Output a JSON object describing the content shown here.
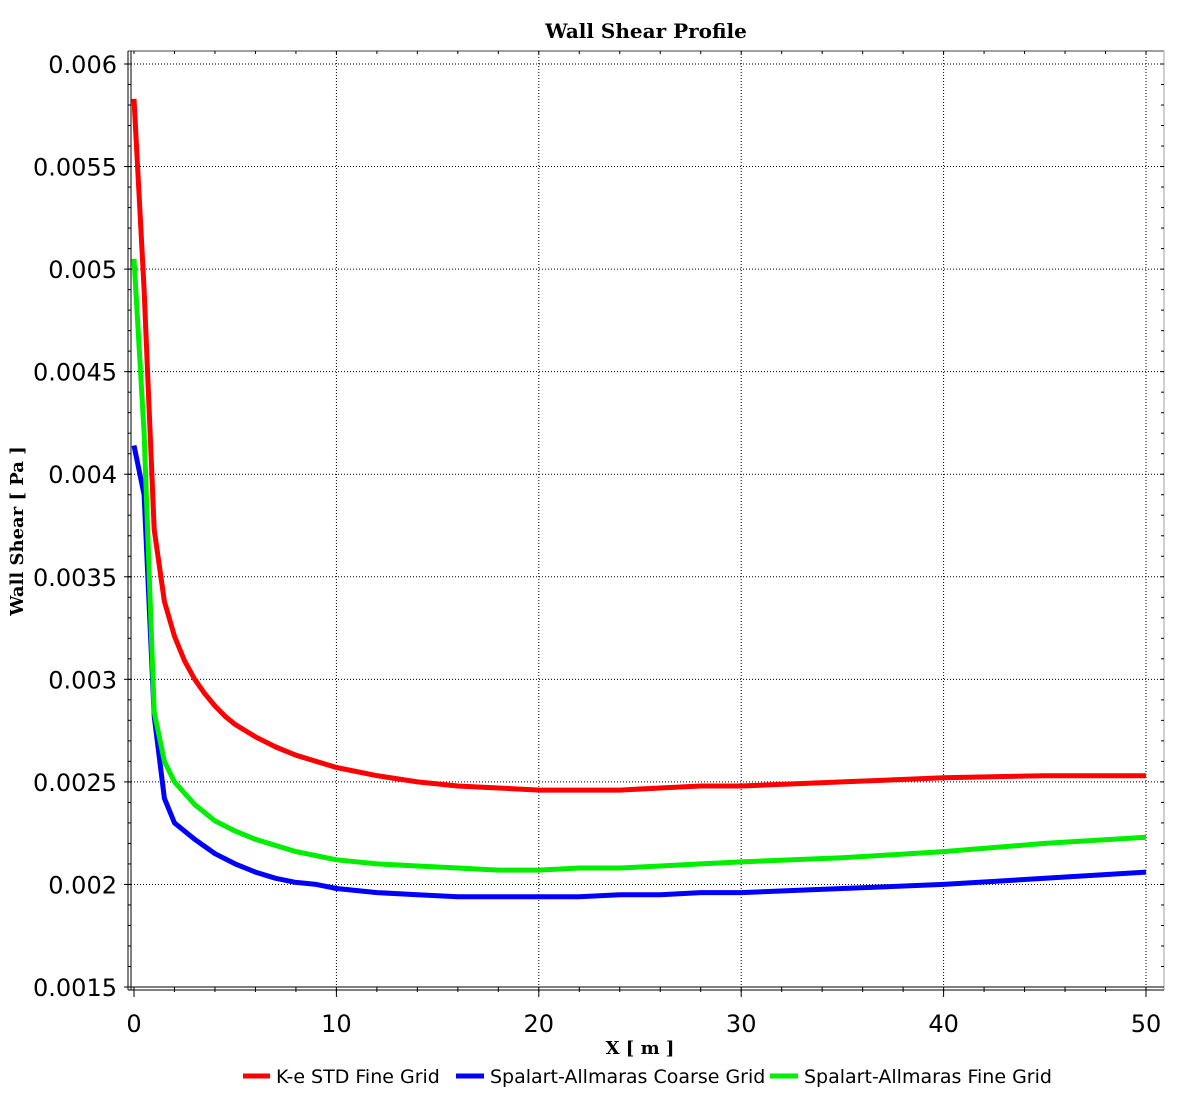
{
  "chart_data": {
    "type": "line",
    "title": "Wall Shear Profile",
    "xlabel": "X [ m ]",
    "ylabel": "Wall Shear [ Pa ]",
    "xlim": [
      0,
      50
    ],
    "ylim": [
      0.0015,
      0.006
    ],
    "xticks": [
      "0",
      "10",
      "20",
      "30",
      "40",
      "50"
    ],
    "yticks": [
      "0.006",
      "0.0055",
      "0.005",
      "0.0045",
      "0.004",
      "0.0035",
      "0.003",
      "0.0025",
      "0.002",
      "0.0015"
    ],
    "grid": true,
    "legend_position": "bottom",
    "series": [
      {
        "name": "K-e STD Fine Grid",
        "color": "#ff0000",
        "x": [
          0,
          0.5,
          1,
          1.5,
          2,
          2.5,
          3,
          3.5,
          4,
          4.5,
          5,
          6,
          7,
          8,
          9,
          10,
          12,
          14,
          16,
          18,
          20,
          22,
          24,
          26,
          28,
          30,
          35,
          40,
          45,
          50
        ],
        "y": [
          0.00583,
          0.0049,
          0.00373,
          0.00338,
          0.00321,
          0.00309,
          0.003,
          0.00293,
          0.00287,
          0.00282,
          0.00278,
          0.00272,
          0.00267,
          0.00263,
          0.0026,
          0.00257,
          0.00253,
          0.0025,
          0.00248,
          0.00247,
          0.00246,
          0.00246,
          0.00246,
          0.00247,
          0.00248,
          0.00248,
          0.0025,
          0.00252,
          0.00253,
          0.00253
        ]
      },
      {
        "name": "Spalart-Allmaras Coarse Grid",
        "color": "#0000ff",
        "x": [
          0,
          0.5,
          1,
          1.5,
          2,
          3,
          4,
          5,
          6,
          7,
          8,
          9,
          10,
          12,
          14,
          16,
          18,
          20,
          22,
          24,
          26,
          28,
          30,
          35,
          40,
          45,
          50
        ],
        "y": [
          0.00414,
          0.0039,
          0.00282,
          0.00242,
          0.0023,
          0.00222,
          0.00215,
          0.0021,
          0.00206,
          0.00203,
          0.00201,
          0.002,
          0.00198,
          0.00196,
          0.00195,
          0.00194,
          0.00194,
          0.00194,
          0.00194,
          0.00195,
          0.00195,
          0.00196,
          0.00196,
          0.00198,
          0.002,
          0.00203,
          0.00206
        ]
      },
      {
        "name": "Spalart-Allmaras Fine Grid",
        "color": "#00ee00",
        "x": [
          0,
          0.5,
          1,
          1.5,
          2,
          3,
          4,
          5,
          6,
          7,
          8,
          9,
          10,
          12,
          14,
          16,
          18,
          20,
          22,
          24,
          26,
          28,
          30,
          35,
          40,
          45,
          50
        ],
        "y": [
          0.00505,
          0.0042,
          0.00284,
          0.0026,
          0.0025,
          0.00239,
          0.00231,
          0.00226,
          0.00222,
          0.00219,
          0.00216,
          0.00214,
          0.00212,
          0.0021,
          0.00209,
          0.00208,
          0.00207,
          0.00207,
          0.00208,
          0.00208,
          0.00209,
          0.0021,
          0.00211,
          0.00213,
          0.00216,
          0.0022,
          0.00223
        ]
      }
    ]
  }
}
